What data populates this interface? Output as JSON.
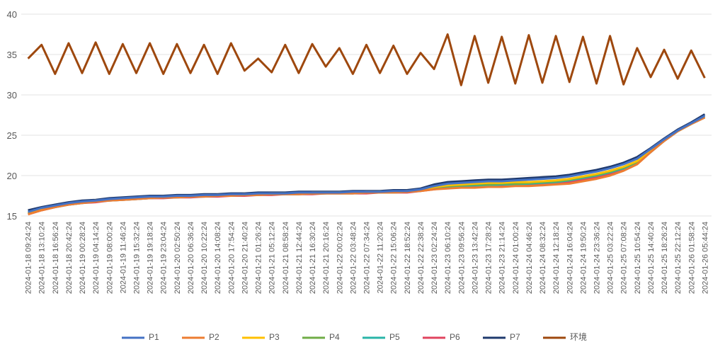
{
  "chart_data": {
    "type": "line",
    "categories": [
      "2024-01-18 09:24:24",
      "2024-01-18 13:10:24",
      "2024-01-18 16:56:24",
      "2024-01-18 20:42:24",
      "2024-01-19 00:28:24",
      "2024-01-19 04:14:24",
      "2024-01-19 08:00:24",
      "2024-01-19 11:46:24",
      "2024-01-19 15:32:24",
      "2024-01-19 19:18:24",
      "2024-01-19 23:04:24",
      "2024-01-20 02:50:24",
      "2024-01-20 06:36:24",
      "2024-01-20 10:22:24",
      "2024-01-20 14:08:24",
      "2024-01-20 17:54:24",
      "2024-01-20 21:40:24",
      "2024-01-21 01:26:24",
      "2024-01-21 05:12:24",
      "2024-01-21 08:58:24",
      "2024-01-21 12:44:24",
      "2024-01-21 16:30:24",
      "2024-01-21 20:16:24",
      "2024-01-22 00:02:24",
      "2024-01-22 03:48:24",
      "2024-01-22 07:34:24",
      "2024-01-22 11:20:24",
      "2024-01-22 15:06:24",
      "2024-01-22 18:52:24",
      "2024-01-22 22:38:24",
      "2024-01-23 02:24:24",
      "2024-01-23 06:10:24",
      "2024-01-23 09:56:24",
      "2024-01-23 13:42:24",
      "2024-01-23 17:28:24",
      "2024-01-23 21:14:24",
      "2024-01-24 01:00:24",
      "2024-01-24 04:46:24",
      "2024-01-24 08:32:24",
      "2024-01-24 12:18:24",
      "2024-01-24 16:04:24",
      "2024-01-24 19:50:24",
      "2024-01-24 23:36:24",
      "2024-01-25 03:22:24",
      "2024-01-25 07:08:24",
      "2024-01-25 10:54:24",
      "2024-01-25 14:40:24",
      "2024-01-25 18:26:24",
      "2024-01-25 22:12:24",
      "2024-01-26 01:58:24",
      "2024-01-26 05:44:24"
    ],
    "series": [
      {
        "name": "P1",
        "color": "#4472c4",
        "values": [
          15.5,
          16.0,
          16.3,
          16.6,
          16.8,
          16.9,
          17.1,
          17.2,
          17.3,
          17.4,
          17.4,
          17.5,
          17.5,
          17.6,
          17.6,
          17.7,
          17.7,
          17.8,
          17.8,
          17.8,
          17.9,
          17.9,
          17.9,
          17.9,
          18.0,
          18.0,
          18.0,
          18.1,
          18.1,
          18.3,
          18.7,
          19.0,
          19.1,
          19.2,
          19.3,
          19.3,
          19.4,
          19.5,
          19.6,
          19.7,
          19.9,
          20.2,
          20.5,
          20.9,
          21.4,
          22.1,
          23.3,
          24.5,
          25.6,
          26.5,
          27.4
        ]
      },
      {
        "name": "P2",
        "color": "#ed7d31",
        "values": [
          15.2,
          15.7,
          16.1,
          16.4,
          16.6,
          16.8,
          16.9,
          17.0,
          17.1,
          17.2,
          17.3,
          17.3,
          17.4,
          17.4,
          17.5,
          17.5,
          17.6,
          17.6,
          17.7,
          17.7,
          17.7,
          17.8,
          17.8,
          17.8,
          17.8,
          17.9,
          17.9,
          17.9,
          18.0,
          18.1,
          18.3,
          18.4,
          18.5,
          18.5,
          18.6,
          18.6,
          18.7,
          18.7,
          18.8,
          18.9,
          19.0,
          19.3,
          19.6,
          20.0,
          20.6,
          21.4,
          22.9,
          24.3,
          25.5,
          26.4,
          27.2
        ]
      },
      {
        "name": "P3",
        "color": "#ffc000",
        "values": [
          15.4,
          15.9,
          16.2,
          16.5,
          16.7,
          16.9,
          17.0,
          17.1,
          17.2,
          17.3,
          17.4,
          17.4,
          17.5,
          17.5,
          17.6,
          17.6,
          17.7,
          17.7,
          17.8,
          17.8,
          17.8,
          17.9,
          17.9,
          17.9,
          17.9,
          18.0,
          18.0,
          18.0,
          18.1,
          18.2,
          18.6,
          18.8,
          18.9,
          19.0,
          19.1,
          19.1,
          19.2,
          19.2,
          19.3,
          19.4,
          19.6,
          19.9,
          20.2,
          20.6,
          21.1,
          21.8,
          23.1,
          24.4,
          25.5,
          26.4,
          27.3
        ]
      },
      {
        "name": "P4",
        "color": "#70ad47",
        "values": [
          15.3,
          15.8,
          16.2,
          16.5,
          16.7,
          16.8,
          17.0,
          17.1,
          17.2,
          17.3,
          17.3,
          17.4,
          17.4,
          17.5,
          17.5,
          17.6,
          17.6,
          17.7,
          17.7,
          17.8,
          17.8,
          17.8,
          17.8,
          17.9,
          17.9,
          17.9,
          18.0,
          18.0,
          18.0,
          18.2,
          18.5,
          18.7,
          18.8,
          18.9,
          18.9,
          19.0,
          19.0,
          19.1,
          19.2,
          19.3,
          19.5,
          19.8,
          20.1,
          20.5,
          21.0,
          21.7,
          23.0,
          24.4,
          25.5,
          26.4,
          27.3
        ]
      },
      {
        "name": "P5",
        "color": "#2ab5a8",
        "values": [
          15.3,
          15.8,
          16.1,
          16.4,
          16.6,
          16.8,
          16.9,
          17.0,
          17.1,
          17.2,
          17.3,
          17.3,
          17.4,
          17.4,
          17.5,
          17.5,
          17.6,
          17.6,
          17.7,
          17.7,
          17.7,
          17.8,
          17.8,
          17.8,
          17.8,
          17.9,
          17.9,
          17.9,
          18.0,
          18.1,
          18.4,
          18.6,
          18.7,
          18.8,
          18.8,
          18.9,
          18.9,
          19.0,
          19.1,
          19.2,
          19.4,
          19.7,
          20.0,
          20.4,
          20.9,
          21.6,
          22.9,
          24.3,
          25.5,
          26.4,
          27.2
        ]
      },
      {
        "name": "P6",
        "color": "#e0445f",
        "values": [
          15.2,
          15.7,
          16.1,
          16.4,
          16.6,
          16.7,
          16.9,
          17.0,
          17.1,
          17.2,
          17.2,
          17.3,
          17.3,
          17.4,
          17.4,
          17.5,
          17.5,
          17.6,
          17.6,
          17.7,
          17.7,
          17.7,
          17.8,
          17.8,
          17.8,
          17.8,
          17.9,
          17.9,
          17.9,
          18.1,
          18.3,
          18.5,
          18.6,
          18.6,
          18.7,
          18.7,
          18.8,
          18.8,
          18.9,
          19.0,
          19.2,
          19.5,
          19.8,
          20.2,
          20.7,
          21.5,
          22.9,
          24.3,
          25.5,
          26.4,
          27.2
        ]
      },
      {
        "name": "P7",
        "color": "#1f3a6e",
        "values": [
          15.7,
          16.1,
          16.4,
          16.7,
          16.9,
          17.0,
          17.2,
          17.3,
          17.4,
          17.5,
          17.5,
          17.6,
          17.6,
          17.7,
          17.7,
          17.8,
          17.8,
          17.9,
          17.9,
          17.9,
          18.0,
          18.0,
          18.0,
          18.0,
          18.1,
          18.1,
          18.1,
          18.2,
          18.2,
          18.4,
          18.9,
          19.2,
          19.3,
          19.4,
          19.5,
          19.5,
          19.6,
          19.7,
          19.8,
          19.9,
          20.1,
          20.4,
          20.7,
          21.1,
          21.6,
          22.3,
          23.4,
          24.6,
          25.7,
          26.6,
          27.6
        ]
      },
      {
        "name": "环境",
        "color": "#9e480e",
        "values": [
          34.5,
          36.2,
          32.6,
          36.4,
          32.7,
          36.5,
          32.6,
          36.3,
          32.7,
          36.4,
          32.6,
          36.3,
          32.7,
          36.2,
          32.6,
          36.4,
          33.0,
          34.5,
          32.8,
          36.2,
          32.7,
          36.3,
          33.5,
          35.8,
          32.6,
          36.2,
          32.7,
          36.1,
          32.6,
          35.2,
          33.2,
          37.5,
          31.2,
          37.3,
          31.5,
          37.2,
          31.4,
          37.4,
          31.5,
          37.3,
          31.6,
          37.2,
          31.4,
          37.3,
          31.3,
          35.8,
          32.2,
          35.6,
          32.0,
          35.5,
          32.1
        ]
      }
    ],
    "ylim": [
      15,
      40
    ],
    "yticks": [
      15,
      20,
      25,
      30,
      35,
      40
    ],
    "grid": true,
    "legend": "bottom"
  }
}
